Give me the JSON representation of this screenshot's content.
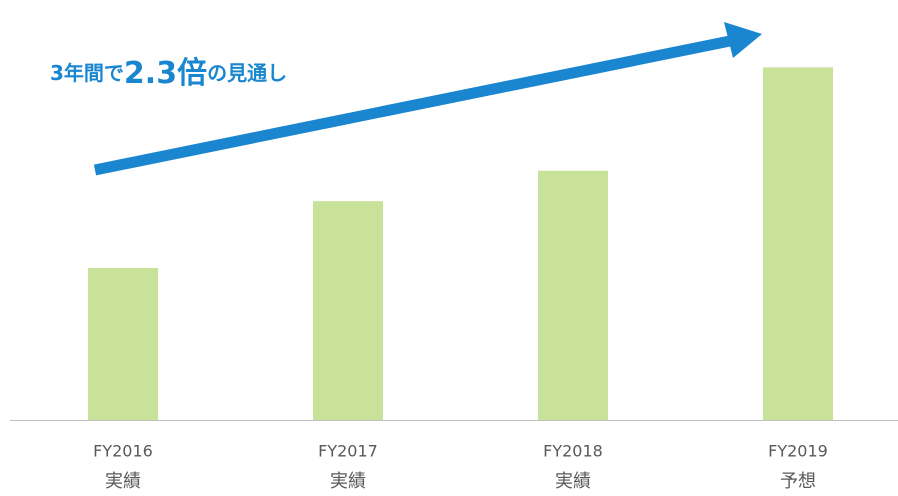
{
  "chart_data": {
    "type": "bar",
    "annotation": [
      "3年間で",
      "2.3倍",
      "の見通し"
    ],
    "categories": [
      "FY2016",
      "FY2017",
      "FY2018",
      "FY2019"
    ],
    "sublabels": [
      "実績",
      "実績",
      "実績",
      "予想"
    ],
    "values": [
      100,
      144,
      164,
      232
    ],
    "color": "#c9e29a",
    "ylim": [
      0,
      250
    ]
  }
}
